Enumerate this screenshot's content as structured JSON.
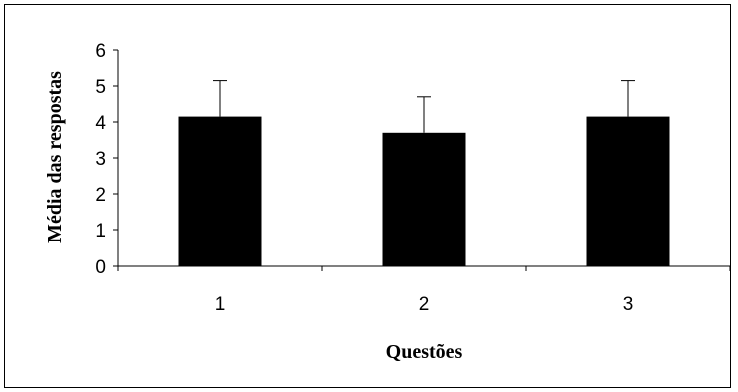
{
  "chart_data": {
    "type": "bar",
    "categories": [
      "1",
      "2",
      "3"
    ],
    "values": [
      4.15,
      3.7,
      4.15
    ],
    "error_bars": [
      1.0,
      1.0,
      1.0
    ],
    "xlabel": "Questões",
    "ylabel": "Média das respostas",
    "ylim": [
      0,
      6
    ],
    "yticks": [
      "0",
      "1",
      "2",
      "3",
      "4",
      "5",
      "6"
    ],
    "grid": false,
    "legend": "none",
    "bar_color": "#000000"
  }
}
